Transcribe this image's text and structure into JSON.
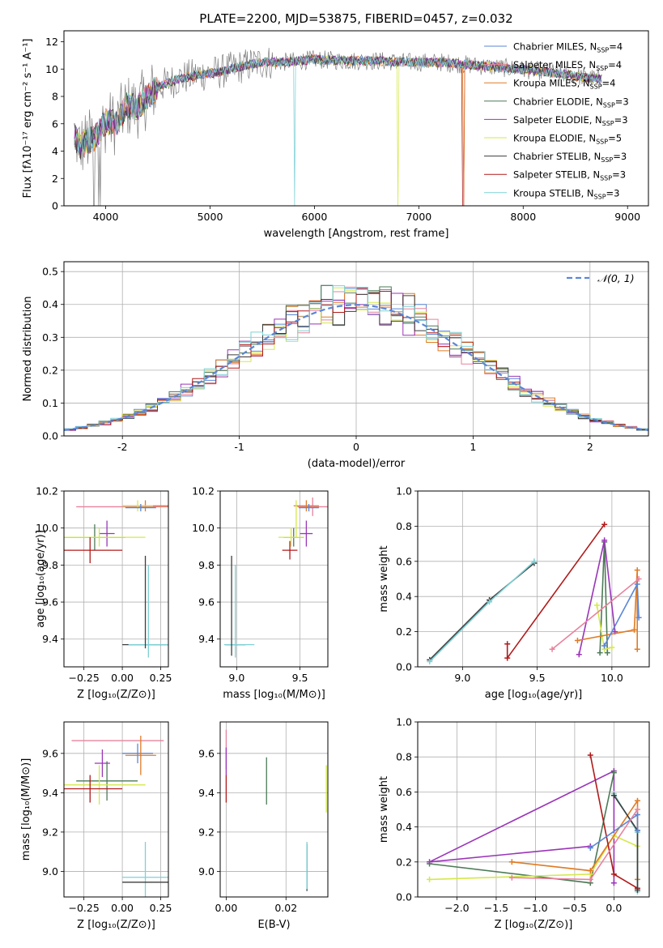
{
  "figure": {
    "title": "PLATE=2200, MJD=53875, FIBERID=0457, z=0.032"
  },
  "colors": {
    "chabrier_miles": "#5b86d6",
    "salpeter_miles": "#e8829d",
    "kroupa_miles": "#e07b23",
    "chabrier_elodie": "#4d7a57",
    "salpeter_elodie": "#9a35b8",
    "kroupa_elodie": "#d5e84a",
    "chabrier_stelib": "#3d3d3d",
    "salpeter_stelib": "#b01a1a",
    "kroupa_stelib": "#7fd1d6",
    "data": "#808080",
    "grid": "#b0b0b0",
    "normal": "#5b86d6"
  },
  "chart_data": [
    {
      "id": "spectrum",
      "type": "line",
      "xlabel": "wavelength [Angstrom, rest frame]",
      "ylabel": "Flux [fλ10⁻¹⁷ erg cm⁻² s⁻¹ A⁻¹]",
      "xlim": [
        3600,
        9200
      ],
      "ylim": [
        0,
        12.8
      ],
      "xticks": [
        4000,
        5000,
        6000,
        7000,
        8000,
        9000
      ],
      "yticks": [
        0,
        2,
        4,
        6,
        8,
        10,
        12
      ],
      "grid": false,
      "legend_position": "top-right",
      "legend": [
        {
          "prefix": "Chabrier MILES, N",
          "sub": "SSP",
          "suffix": "=4",
          "color": "chabrier_miles"
        },
        {
          "prefix": "Salpeter MILES, N",
          "sub": "SSP",
          "suffix": "=4",
          "color": "salpeter_miles"
        },
        {
          "prefix": "Kroupa MILES, N",
          "sub": "SSP",
          "suffix": "=4",
          "color": "kroupa_miles"
        },
        {
          "prefix": "Chabrier ELODIE, N",
          "sub": "SSP",
          "suffix": "=3",
          "color": "chabrier_elodie"
        },
        {
          "prefix": "Salpeter ELODIE, N",
          "sub": "SSP",
          "suffix": "=3",
          "color": "salpeter_elodie"
        },
        {
          "prefix": "Kroupa ELODIE, N",
          "sub": "SSP",
          "suffix": "=5",
          "color": "kroupa_elodie"
        },
        {
          "prefix": "Chabrier STELIB, N",
          "sub": "SSP",
          "suffix": "=3",
          "color": "chabrier_stelib"
        },
        {
          "prefix": "Salpeter STELIB, N",
          "sub": "SSP",
          "suffix": "=3",
          "color": "salpeter_stelib"
        },
        {
          "prefix": "Kroupa STELIB, N",
          "sub": "SSP",
          "suffix": "=3",
          "color": "kroupa_stelib"
        }
      ],
      "model_continuum": {
        "x": [
          3700,
          3750,
          3800,
          3900,
          4000,
          4100,
          4200,
          4300,
          4400,
          4500,
          4700,
          4900,
          5100,
          5300,
          5500,
          5700,
          6000,
          6300,
          6600,
          6900,
          7200,
          7500,
          7800,
          8100,
          8400,
          8700
        ],
        "y": [
          5.2,
          4.3,
          4.6,
          5.0,
          6.2,
          6.0,
          7.3,
          7.2,
          8.0,
          8.7,
          9.3,
          9.6,
          9.8,
          10.2,
          10.5,
          10.5,
          10.7,
          10.6,
          10.6,
          10.5,
          10.5,
          10.3,
          10.1,
          9.9,
          9.6,
          9.3
        ]
      },
      "data_noise": {
        "x_start": 3700,
        "x_end": 8750,
        "step": 8
      },
      "model_dropouts": [
        {
          "series": "kroupa_stelib",
          "x": 5810
        },
        {
          "series": "kroupa_elodie",
          "x": 6800
        },
        {
          "series": "kroupa_miles",
          "x": 7430
        },
        {
          "series": "salpeter_stelib",
          "x": 7425
        }
      ]
    },
    {
      "id": "residuals",
      "type": "histogram",
      "xlabel": "(data-model)/error",
      "ylabel": "Normed distribution",
      "xlim": [
        -2.5,
        2.5
      ],
      "ylim": [
        0,
        0.53
      ],
      "xticks": [
        -2,
        -1,
        0,
        1,
        2
      ],
      "yticks": [
        0,
        0.1,
        0.2,
        0.3,
        0.4,
        0.5
      ],
      "grid": true,
      "legend_position": "top-right",
      "legend_label": "𝒩(0, 1)",
      "bin_width": 0.1,
      "normal_curve": {
        "mean": 0,
        "sigma": 1
      }
    },
    {
      "id": "age_vs_z",
      "type": "scatter",
      "xlabel": "Z [log₁₀(Z/Z⊙)]",
      "ylabel": "age  [log₁₀(age/yr)]",
      "xlim": [
        -0.38,
        0.3
      ],
      "ylim": [
        9.25,
        10.2
      ],
      "xticks": [
        -0.25,
        0.0,
        0.25
      ],
      "xticklabels": [
        "−0.25",
        "0.00",
        "0.25"
      ],
      "yticks": [
        9.4,
        9.6,
        9.8,
        10.0,
        10.2
      ],
      "grid": true,
      "points": [
        {
          "c": "salpeter_miles",
          "x": 0.0,
          "y": 10.115,
          "xe": 0.3,
          "ye": 0.0
        },
        {
          "c": "kroupa_miles",
          "x": 0.15,
          "y": 10.12,
          "xe": 0.15,
          "ye": 0.03
        },
        {
          "c": "kroupa_elodie",
          "x": 0.1,
          "y": 10.12,
          "xe": 0.1,
          "ye": 0.03
        },
        {
          "c": "chabrier_miles",
          "x": 0.12,
          "y": 10.11,
          "xe": 0.1,
          "ye": 0.02
        },
        {
          "c": "chabrier_elodie",
          "x": -0.18,
          "y": 9.95,
          "xe": 0.2,
          "ye": 0.07
        },
        {
          "c": "salpeter_elodie",
          "x": -0.1,
          "y": 9.97,
          "xe": 0.05,
          "ye": 0.07
        },
        {
          "c": "kroupa_elodie",
          "x": -0.15,
          "y": 9.95,
          "xe": 0.3,
          "ye": 0.05
        },
        {
          "c": "salpeter_stelib",
          "x": -0.21,
          "y": 9.88,
          "xe": 0.21,
          "ye": 0.07
        },
        {
          "c": "chabrier_stelib",
          "x": 0.15,
          "y": 9.37,
          "xe": 0.15,
          "ye": 0.0
        },
        {
          "c": "kroupa_stelib",
          "x": 0.17,
          "y": 9.37,
          "xe": 0.13,
          "ye": 0.0
        },
        {
          "c": "chabrier_stelib",
          "x": 0.15,
          "y": 9.6,
          "xe": 0.0,
          "ye": 0.25
        },
        {
          "c": "kroupa_stelib",
          "x": 0.17,
          "y": 9.55,
          "xe": 0.0,
          "ye": 0.25
        }
      ]
    },
    {
      "id": "age_vs_mass",
      "type": "scatter",
      "xlabel": "mass [log₁₀(M/M⊙)]",
      "ylabel": "",
      "xlim": [
        8.87,
        9.72
      ],
      "ylim": [
        9.25,
        10.2
      ],
      "xticks": [
        9.0,
        9.5
      ],
      "xticklabels": [
        "9.0",
        "9.5"
      ],
      "yticks": [
        9.4,
        9.6,
        9.8,
        10.0,
        10.2
      ],
      "grid": true,
      "points": [
        {
          "c": "salpeter_miles",
          "x": 9.6,
          "y": 10.115,
          "xe": 0.12,
          "ye": 0.05
        },
        {
          "c": "kroupa_miles",
          "x": 9.55,
          "y": 10.12,
          "xe": 0.1,
          "ye": 0.03
        },
        {
          "c": "chabrier_miles",
          "x": 9.57,
          "y": 10.11,
          "xe": 0.08,
          "ye": 0.02
        },
        {
          "c": "kroupa_elodie",
          "x": 9.47,
          "y": 10.05,
          "xe": 0.0,
          "ye": 0.1
        },
        {
          "c": "chabrier_elodie",
          "x": 9.45,
          "y": 9.95,
          "xe": 0.08,
          "ye": 0.05
        },
        {
          "c": "salpeter_elodie",
          "x": 9.55,
          "y": 9.97,
          "xe": 0.05,
          "ye": 0.07
        },
        {
          "c": "kroupa_elodie",
          "x": 9.43,
          "y": 9.95,
          "xe": 0.1,
          "ye": 0.05
        },
        {
          "c": "salpeter_stelib",
          "x": 9.42,
          "y": 9.88,
          "xe": 0.06,
          "ye": 0.05
        },
        {
          "c": "chabrier_stelib",
          "x": 8.99,
          "y": 9.37,
          "xe": 0.08,
          "ye": 0.0
        },
        {
          "c": "kroupa_stelib",
          "x": 9.02,
          "y": 9.37,
          "xe": 0.12,
          "ye": 0.0
        },
        {
          "c": "chabrier_stelib",
          "x": 8.96,
          "y": 9.58,
          "xe": 0.0,
          "ye": 0.27
        },
        {
          "c": "kroupa_stelib",
          "x": 8.99,
          "y": 9.55,
          "xe": 0.0,
          "ye": 0.25
        }
      ]
    },
    {
      "id": "weight_vs_age",
      "type": "line",
      "xlabel": "age  [log₁₀(age/yr)]",
      "ylabel": "mass weight",
      "xlim": [
        8.7,
        10.25
      ],
      "ylim": [
        0,
        1.0
      ],
      "xticks": [
        9.0,
        9.5,
        10.0
      ],
      "xticklabels": [
        "9.0",
        "9.5",
        "10.0"
      ],
      "yticks": [
        0.0,
        0.2,
        0.4,
        0.6,
        0.8,
        1.0
      ],
      "grid": true,
      "series": [
        {
          "c": "chabrier_stelib",
          "x": [
            8.78,
            9.18,
            9.48
          ],
          "y": [
            0.04,
            0.38,
            0.59
          ]
        },
        {
          "c": "kroupa_stelib",
          "x": [
            8.78,
            9.18,
            9.48
          ],
          "y": [
            0.03,
            0.37,
            0.6
          ]
        },
        {
          "c": "salpeter_stelib",
          "x": [
            9.3,
            9.3,
            9.95
          ],
          "y": [
            0.13,
            0.05,
            0.81
          ]
        },
        {
          "c": "chabrier_elodie",
          "x": [
            9.92,
            9.95,
            9.97
          ],
          "y": [
            0.08,
            0.71,
            0.08
          ]
        },
        {
          "c": "salpeter_elodie",
          "x": [
            9.78,
            9.95,
            10.02
          ],
          "y": [
            0.07,
            0.72,
            0.2
          ]
        },
        {
          "c": "kroupa_elodie",
          "x": [
            9.9,
            9.95,
            10.0
          ],
          "y": [
            0.35,
            0.1,
            0.11
          ]
        },
        {
          "c": "kroupa_miles",
          "x": [
            9.77,
            10.15,
            10.17,
            10.17
          ],
          "y": [
            0.15,
            0.21,
            0.55,
            0.1
          ]
        },
        {
          "c": "chabrier_miles",
          "x": [
            9.95,
            10.17,
            10.18
          ],
          "y": [
            0.12,
            0.47,
            0.28
          ]
        },
        {
          "c": "salpeter_miles",
          "x": [
            9.6,
            10.18
          ],
          "y": [
            0.1,
            0.5
          ]
        }
      ]
    },
    {
      "id": "mass_vs_z",
      "type": "scatter",
      "xlabel": "Z [log₁₀(Z/Z⊙)]",
      "ylabel": "mass [log₁₀(M/M⊙)]",
      "xlim": [
        -0.38,
        0.3
      ],
      "ylim": [
        8.87,
        9.76
      ],
      "xticks": [
        -0.25,
        0.0,
        0.25
      ],
      "xticklabels": [
        "−0.25",
        "0.00",
        "0.25"
      ],
      "yticks": [
        9.0,
        9.2,
        9.4,
        9.6
      ],
      "grid": true,
      "points": [
        {
          "c": "salpeter_miles",
          "x": -0.03,
          "y": 9.665,
          "xe": 0.3,
          "ye": 0.0
        },
        {
          "c": "chabrier_miles",
          "x": 0.1,
          "y": 9.6,
          "xe": 0.1,
          "ye": 0.05
        },
        {
          "c": "kroupa_miles",
          "x": 0.12,
          "y": 9.59,
          "xe": 0.1,
          "ye": 0.1
        },
        {
          "c": "salpeter_elodie",
          "x": -0.13,
          "y": 9.55,
          "xe": 0.05,
          "ye": 0.07
        },
        {
          "c": "chabrier_elodie",
          "x": -0.1,
          "y": 9.46,
          "xe": 0.2,
          "ye": 0.1
        },
        {
          "c": "kroupa_elodie",
          "x": -0.15,
          "y": 9.44,
          "xe": 0.3,
          "ye": 0.1
        },
        {
          "c": "salpeter_stelib",
          "x": -0.21,
          "y": 9.42,
          "xe": 0.21,
          "ye": 0.07
        },
        {
          "c": "kroupa_stelib",
          "x": 0.15,
          "y": 8.97,
          "xe": 0.15,
          "ye": 0.18
        },
        {
          "c": "chabrier_stelib",
          "x": 0.15,
          "y": 8.945,
          "xe": 0.15,
          "ye": 0.0
        }
      ]
    },
    {
      "id": "mass_vs_ebv",
      "type": "scatter",
      "xlabel": "E(B-V)",
      "ylabel": "",
      "xlim": [
        -0.002,
        0.034
      ],
      "ylim": [
        8.87,
        9.76
      ],
      "xticks": [
        0.0,
        0.02
      ],
      "xticklabels": [
        "0.00",
        "0.02"
      ],
      "yticks": [
        9.0,
        9.2,
        9.4,
        9.6
      ],
      "grid": true,
      "points": [
        {
          "c": "salpeter_miles",
          "x": 0.0,
          "y": 9.62,
          "xe": 0.0,
          "ye": 0.1
        },
        {
          "c": "salpeter_elodie",
          "x": 0.0,
          "y": 9.56,
          "xe": 0.0,
          "ye": 0.07
        },
        {
          "c": "salpeter_stelib",
          "x": 0.0,
          "y": 9.42,
          "xe": 0.0,
          "ye": 0.07
        },
        {
          "c": "chabrier_elodie",
          "x": 0.0135,
          "y": 9.46,
          "xe": 0.0,
          "ye": 0.12
        },
        {
          "c": "kroupa_elodie",
          "x": 0.0335,
          "y": 9.42,
          "xe": 0.0,
          "ye": 0.12
        },
        {
          "c": "chabrier_stelib",
          "x": 0.027,
          "y": 9.02,
          "xe": 0.0,
          "ye": 0.12
        },
        {
          "c": "kroupa_stelib",
          "x": 0.027,
          "y": 9.03,
          "xe": 0.0,
          "ye": 0.12
        }
      ]
    },
    {
      "id": "weight_vs_z",
      "type": "line",
      "xlabel": "Z [log₁₀(Z/Z⊙)]",
      "ylabel": "mass weight",
      "xlim": [
        -2.5,
        0.45
      ],
      "ylim": [
        0,
        1.0
      ],
      "xticks": [
        -2.0,
        -1.5,
        -1.0,
        -0.5,
        0.0
      ],
      "xticklabels": [
        "−2.0",
        "−1.5",
        "−1.0",
        "−0.5",
        "0.0"
      ],
      "yticks": [
        0.0,
        0.2,
        0.4,
        0.6,
        0.8,
        1.0
      ],
      "grid": true,
      "series": [
        {
          "c": "salpeter_elodie",
          "x": [
            -0.3,
            -2.35,
            0.0,
            0.0
          ],
          "y": [
            0.29,
            0.2,
            0.72,
            0.08
          ]
        },
        {
          "c": "chabrier_elodie",
          "x": [
            -2.35,
            -0.3,
            0.0
          ],
          "y": [
            0.19,
            0.08,
            0.71
          ]
        },
        {
          "c": "kroupa_elodie",
          "x": [
            -2.35,
            -0.3,
            0.0,
            0.3
          ],
          "y": [
            0.1,
            0.13,
            0.35,
            0.29
          ]
        },
        {
          "c": "kroupa_miles",
          "x": [
            -1.3,
            -0.3,
            0.3,
            0.3
          ],
          "y": [
            0.2,
            0.15,
            0.55,
            0.1
          ]
        },
        {
          "c": "salpeter_stelib",
          "x": [
            -0.3,
            0.0,
            0.3
          ],
          "y": [
            0.81,
            0.13,
            0.05
          ]
        },
        {
          "c": "kroupa_stelib",
          "x": [
            0.0,
            0.3,
            0.3
          ],
          "y": [
            0.59,
            0.37,
            0.03
          ]
        },
        {
          "c": "chabrier_stelib",
          "x": [
            0.0,
            0.3,
            0.3
          ],
          "y": [
            0.58,
            0.38,
            0.04
          ]
        },
        {
          "c": "chabrier_miles",
          "x": [
            -0.3,
            0.3,
            0.3
          ],
          "y": [
            0.28,
            0.47,
            0.38
          ]
        },
        {
          "c": "salpeter_miles",
          "x": [
            -1.3,
            -0.3,
            0.3
          ],
          "y": [
            0.11,
            0.1,
            0.5
          ]
        }
      ]
    }
  ]
}
